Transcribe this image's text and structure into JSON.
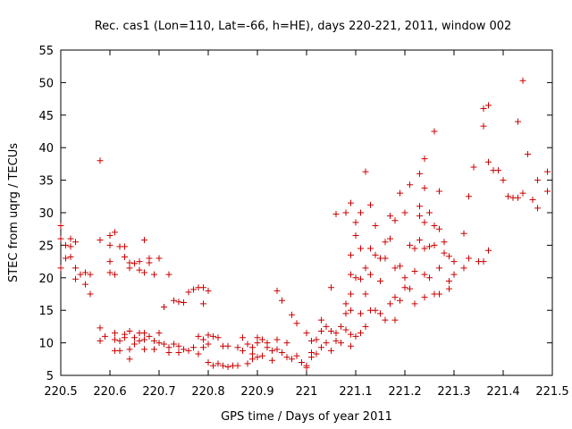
{
  "chart_data": {
    "type": "scatter",
    "title": "Rec. cas1 (Lon=110, Lat=-66, h=HE), days 220-221, 2011, window 002",
    "xlabel": "GPS time / Days of year 2011",
    "ylabel": "STEC from uqrg / TECUs",
    "xlim": [
      220.5,
      221.5
    ],
    "ylim": [
      5,
      55
    ],
    "grid": false,
    "legend": "none",
    "x_ticks": [
      220.5,
      220.6,
      220.7,
      220.8,
      220.9,
      221.0,
      221.1,
      221.2,
      221.3,
      221.4,
      221.5
    ],
    "x_tick_labels": [
      "220.5",
      "220.6",
      "220.7",
      "220.8",
      "220.9",
      "221",
      "221.1",
      "221.2",
      "221.3",
      "221.4",
      "221.5"
    ],
    "y_ticks": [
      5,
      10,
      15,
      20,
      25,
      30,
      35,
      40,
      45,
      50,
      55
    ],
    "y_tick_labels": [
      "5",
      "10",
      "15",
      "20",
      "25",
      "30",
      "35",
      "40",
      "45",
      "50",
      "55"
    ],
    "marker": "+",
    "marker_color": "#cc0000",
    "points": [
      [
        220.5,
        28.0
      ],
      [
        220.5,
        26.0
      ],
      [
        220.5,
        21.5
      ],
      [
        220.51,
        25.0
      ],
      [
        220.51,
        23.0
      ],
      [
        220.52,
        26.0
      ],
      [
        220.52,
        24.8
      ],
      [
        220.52,
        23.2
      ],
      [
        220.53,
        25.5
      ],
      [
        220.53,
        21.5
      ],
      [
        220.53,
        19.8
      ],
      [
        220.54,
        20.5
      ],
      [
        220.55,
        19.0
      ],
      [
        220.55,
        20.8
      ],
      [
        220.56,
        20.5
      ],
      [
        220.56,
        17.5
      ],
      [
        220.58,
        38.0
      ],
      [
        220.58,
        25.8
      ],
      [
        220.58,
        12.3
      ],
      [
        220.58,
        10.3
      ],
      [
        220.59,
        11.0
      ],
      [
        220.6,
        26.5
      ],
      [
        220.6,
        25.0
      ],
      [
        220.6,
        22.5
      ],
      [
        220.6,
        20.8
      ],
      [
        220.61,
        27.0
      ],
      [
        220.61,
        20.5
      ],
      [
        220.61,
        11.5
      ],
      [
        220.61,
        10.5
      ],
      [
        220.61,
        8.8
      ],
      [
        220.62,
        24.8
      ],
      [
        220.62,
        10.3
      ],
      [
        220.62,
        8.8
      ],
      [
        220.63,
        24.8
      ],
      [
        220.63,
        23.2
      ],
      [
        220.63,
        11.3
      ],
      [
        220.63,
        10.8
      ],
      [
        220.64,
        22.3
      ],
      [
        220.64,
        21.5
      ],
      [
        220.64,
        11.8
      ],
      [
        220.64,
        7.5
      ],
      [
        220.64,
        9.0
      ],
      [
        220.65,
        22.2
      ],
      [
        220.65,
        10.8
      ],
      [
        220.65,
        9.8
      ],
      [
        220.66,
        22.5
      ],
      [
        220.66,
        21.2
      ],
      [
        220.66,
        11.5
      ],
      [
        220.66,
        10.3
      ],
      [
        220.67,
        25.8
      ],
      [
        220.67,
        20.8
      ],
      [
        220.67,
        11.5
      ],
      [
        220.67,
        10.5
      ],
      [
        220.67,
        9.0
      ],
      [
        220.68,
        23.0
      ],
      [
        220.68,
        22.3
      ],
      [
        220.68,
        11.0
      ],
      [
        220.69,
        20.5
      ],
      [
        220.69,
        10.3
      ],
      [
        220.69,
        9.0
      ],
      [
        220.7,
        23.0
      ],
      [
        220.7,
        11.5
      ],
      [
        220.7,
        10.0
      ],
      [
        220.71,
        15.5
      ],
      [
        220.71,
        9.8
      ],
      [
        220.72,
        20.5
      ],
      [
        220.72,
        9.3
      ],
      [
        220.72,
        8.5
      ],
      [
        220.73,
        16.5
      ],
      [
        220.73,
        9.8
      ],
      [
        220.74,
        16.3
      ],
      [
        220.74,
        9.5
      ],
      [
        220.74,
        8.5
      ],
      [
        220.75,
        16.2
      ],
      [
        220.75,
        9.0
      ],
      [
        220.76,
        17.8
      ],
      [
        220.76,
        8.8
      ],
      [
        220.77,
        18.2
      ],
      [
        220.77,
        9.3
      ],
      [
        220.78,
        18.5
      ],
      [
        220.78,
        11.0
      ],
      [
        220.78,
        8.3
      ],
      [
        220.79,
        18.5
      ],
      [
        220.79,
        16.0
      ],
      [
        220.79,
        10.5
      ],
      [
        220.79,
        9.3
      ],
      [
        220.8,
        18.0
      ],
      [
        220.8,
        11.2
      ],
      [
        220.8,
        9.8
      ],
      [
        220.8,
        7.0
      ],
      [
        220.81,
        11.0
      ],
      [
        220.81,
        6.5
      ],
      [
        220.82,
        10.8
      ],
      [
        220.82,
        6.8
      ],
      [
        220.83,
        9.5
      ],
      [
        220.83,
        6.5
      ],
      [
        220.84,
        9.5
      ],
      [
        220.84,
        6.3
      ],
      [
        220.85,
        6.5
      ],
      [
        220.86,
        9.3
      ],
      [
        220.86,
        6.5
      ],
      [
        220.87,
        10.8
      ],
      [
        220.87,
        8.8
      ],
      [
        220.88,
        9.8
      ],
      [
        220.88,
        6.8
      ],
      [
        220.89,
        9.3
      ],
      [
        220.89,
        8.3
      ],
      [
        220.89,
        7.5
      ],
      [
        220.9,
        10.8
      ],
      [
        220.9,
        10.0
      ],
      [
        220.9,
        7.8
      ],
      [
        220.91,
        10.5
      ],
      [
        220.91,
        8.0
      ],
      [
        220.92,
        10.0
      ],
      [
        220.92,
        9.3
      ],
      [
        220.93,
        8.8
      ],
      [
        220.93,
        7.3
      ],
      [
        220.94,
        18.0
      ],
      [
        220.94,
        10.5
      ],
      [
        220.94,
        9.0
      ],
      [
        220.95,
        16.5
      ],
      [
        220.95,
        8.5
      ],
      [
        220.96,
        10.0
      ],
      [
        220.96,
        7.8
      ],
      [
        220.97,
        14.3
      ],
      [
        220.97,
        7.5
      ],
      [
        220.98,
        13.0
      ],
      [
        220.98,
        8.0
      ],
      [
        220.99,
        7.0
      ],
      [
        221.0,
        11.5
      ],
      [
        221.0,
        6.5
      ],
      [
        221.0,
        6.2
      ],
      [
        221.01,
        10.3
      ],
      [
        221.01,
        8.5
      ],
      [
        221.01,
        7.8
      ],
      [
        221.02,
        10.5
      ],
      [
        221.02,
        8.3
      ],
      [
        221.03,
        13.5
      ],
      [
        221.03,
        11.8
      ],
      [
        221.03,
        9.3
      ],
      [
        221.04,
        12.5
      ],
      [
        221.04,
        10.0
      ],
      [
        221.05,
        18.5
      ],
      [
        221.05,
        11.8
      ],
      [
        221.05,
        8.8
      ],
      [
        221.06,
        29.8
      ],
      [
        221.06,
        11.5
      ],
      [
        221.06,
        10.3
      ],
      [
        221.07,
        12.5
      ],
      [
        221.07,
        10.0
      ],
      [
        221.08,
        30.0
      ],
      [
        221.08,
        16.0
      ],
      [
        221.08,
        14.5
      ],
      [
        221.08,
        12.0
      ],
      [
        221.09,
        31.5
      ],
      [
        221.09,
        23.5
      ],
      [
        221.09,
        20.5
      ],
      [
        221.09,
        17.5
      ],
      [
        221.09,
        15.0
      ],
      [
        221.09,
        11.3
      ],
      [
        221.09,
        9.5
      ],
      [
        221.1,
        28.5
      ],
      [
        221.1,
        26.5
      ],
      [
        221.1,
        20.0
      ],
      [
        221.1,
        11.0
      ],
      [
        221.11,
        30.0
      ],
      [
        221.11,
        24.5
      ],
      [
        221.11,
        19.8
      ],
      [
        221.11,
        14.5
      ],
      [
        221.11,
        11.5
      ],
      [
        221.12,
        36.3
      ],
      [
        221.12,
        21.5
      ],
      [
        221.12,
        17.5
      ],
      [
        221.12,
        12.5
      ],
      [
        221.13,
        31.2
      ],
      [
        221.13,
        24.5
      ],
      [
        221.13,
        20.5
      ],
      [
        221.13,
        15.0
      ],
      [
        221.14,
        28.0
      ],
      [
        221.14,
        23.5
      ],
      [
        221.14,
        15.0
      ],
      [
        221.15,
        23.0
      ],
      [
        221.15,
        19.5
      ],
      [
        221.15,
        14.5
      ],
      [
        221.16,
        25.5
      ],
      [
        221.16,
        23.0
      ],
      [
        221.16,
        13.5
      ],
      [
        221.17,
        29.5
      ],
      [
        221.17,
        26.0
      ],
      [
        221.17,
        16.0
      ],
      [
        221.18,
        28.8
      ],
      [
        221.18,
        21.5
      ],
      [
        221.18,
        17.0
      ],
      [
        221.18,
        13.5
      ],
      [
        221.19,
        33.0
      ],
      [
        221.19,
        21.8
      ],
      [
        221.19,
        16.5
      ],
      [
        221.2,
        30.0
      ],
      [
        221.2,
        20.0
      ],
      [
        221.2,
        18.5
      ],
      [
        221.21,
        34.3
      ],
      [
        221.21,
        25.0
      ],
      [
        221.21,
        18.3
      ],
      [
        221.22,
        24.5
      ],
      [
        221.22,
        21.0
      ],
      [
        221.22,
        16.0
      ],
      [
        221.23,
        36.0
      ],
      [
        221.23,
        31.0
      ],
      [
        221.23,
        29.5
      ],
      [
        221.23,
        25.8
      ],
      [
        221.24,
        38.3
      ],
      [
        221.24,
        33.8
      ],
      [
        221.24,
        28.5
      ],
      [
        221.24,
        24.5
      ],
      [
        221.24,
        20.5
      ],
      [
        221.24,
        17.0
      ],
      [
        221.25,
        30.0
      ],
      [
        221.25,
        24.8
      ],
      [
        221.25,
        20.0
      ],
      [
        221.26,
        42.5
      ],
      [
        221.26,
        28.0
      ],
      [
        221.26,
        25.0
      ],
      [
        221.26,
        17.5
      ],
      [
        221.27,
        33.3
      ],
      [
        221.27,
        27.5
      ],
      [
        221.27,
        21.5
      ],
      [
        221.27,
        17.5
      ],
      [
        221.28,
        25.5
      ],
      [
        221.28,
        23.8
      ],
      [
        221.29,
        23.3
      ],
      [
        221.29,
        19.5
      ],
      [
        221.29,
        18.3
      ],
      [
        221.3,
        22.5
      ],
      [
        221.3,
        20.5
      ],
      [
        221.32,
        26.8
      ],
      [
        221.32,
        21.5
      ],
      [
        221.33,
        32.5
      ],
      [
        221.33,
        23.0
      ],
      [
        221.34,
        37.0
      ],
      [
        221.35,
        22.5
      ],
      [
        221.36,
        46.0
      ],
      [
        221.36,
        43.3
      ],
      [
        221.36,
        22.5
      ],
      [
        221.37,
        46.5
      ],
      [
        221.37,
        37.8
      ],
      [
        221.37,
        24.2
      ],
      [
        221.38,
        36.5
      ],
      [
        221.39,
        36.5
      ],
      [
        221.4,
        35.0
      ],
      [
        221.41,
        32.5
      ],
      [
        221.42,
        32.3
      ],
      [
        221.43,
        44.0
      ],
      [
        221.43,
        32.3
      ],
      [
        221.44,
        50.3
      ],
      [
        221.44,
        33.0
      ],
      [
        221.45,
        39.0
      ],
      [
        221.46,
        32.0
      ],
      [
        221.47,
        35.0
      ],
      [
        221.47,
        30.7
      ],
      [
        221.49,
        36.3
      ],
      [
        221.49,
        33.3
      ]
    ]
  }
}
